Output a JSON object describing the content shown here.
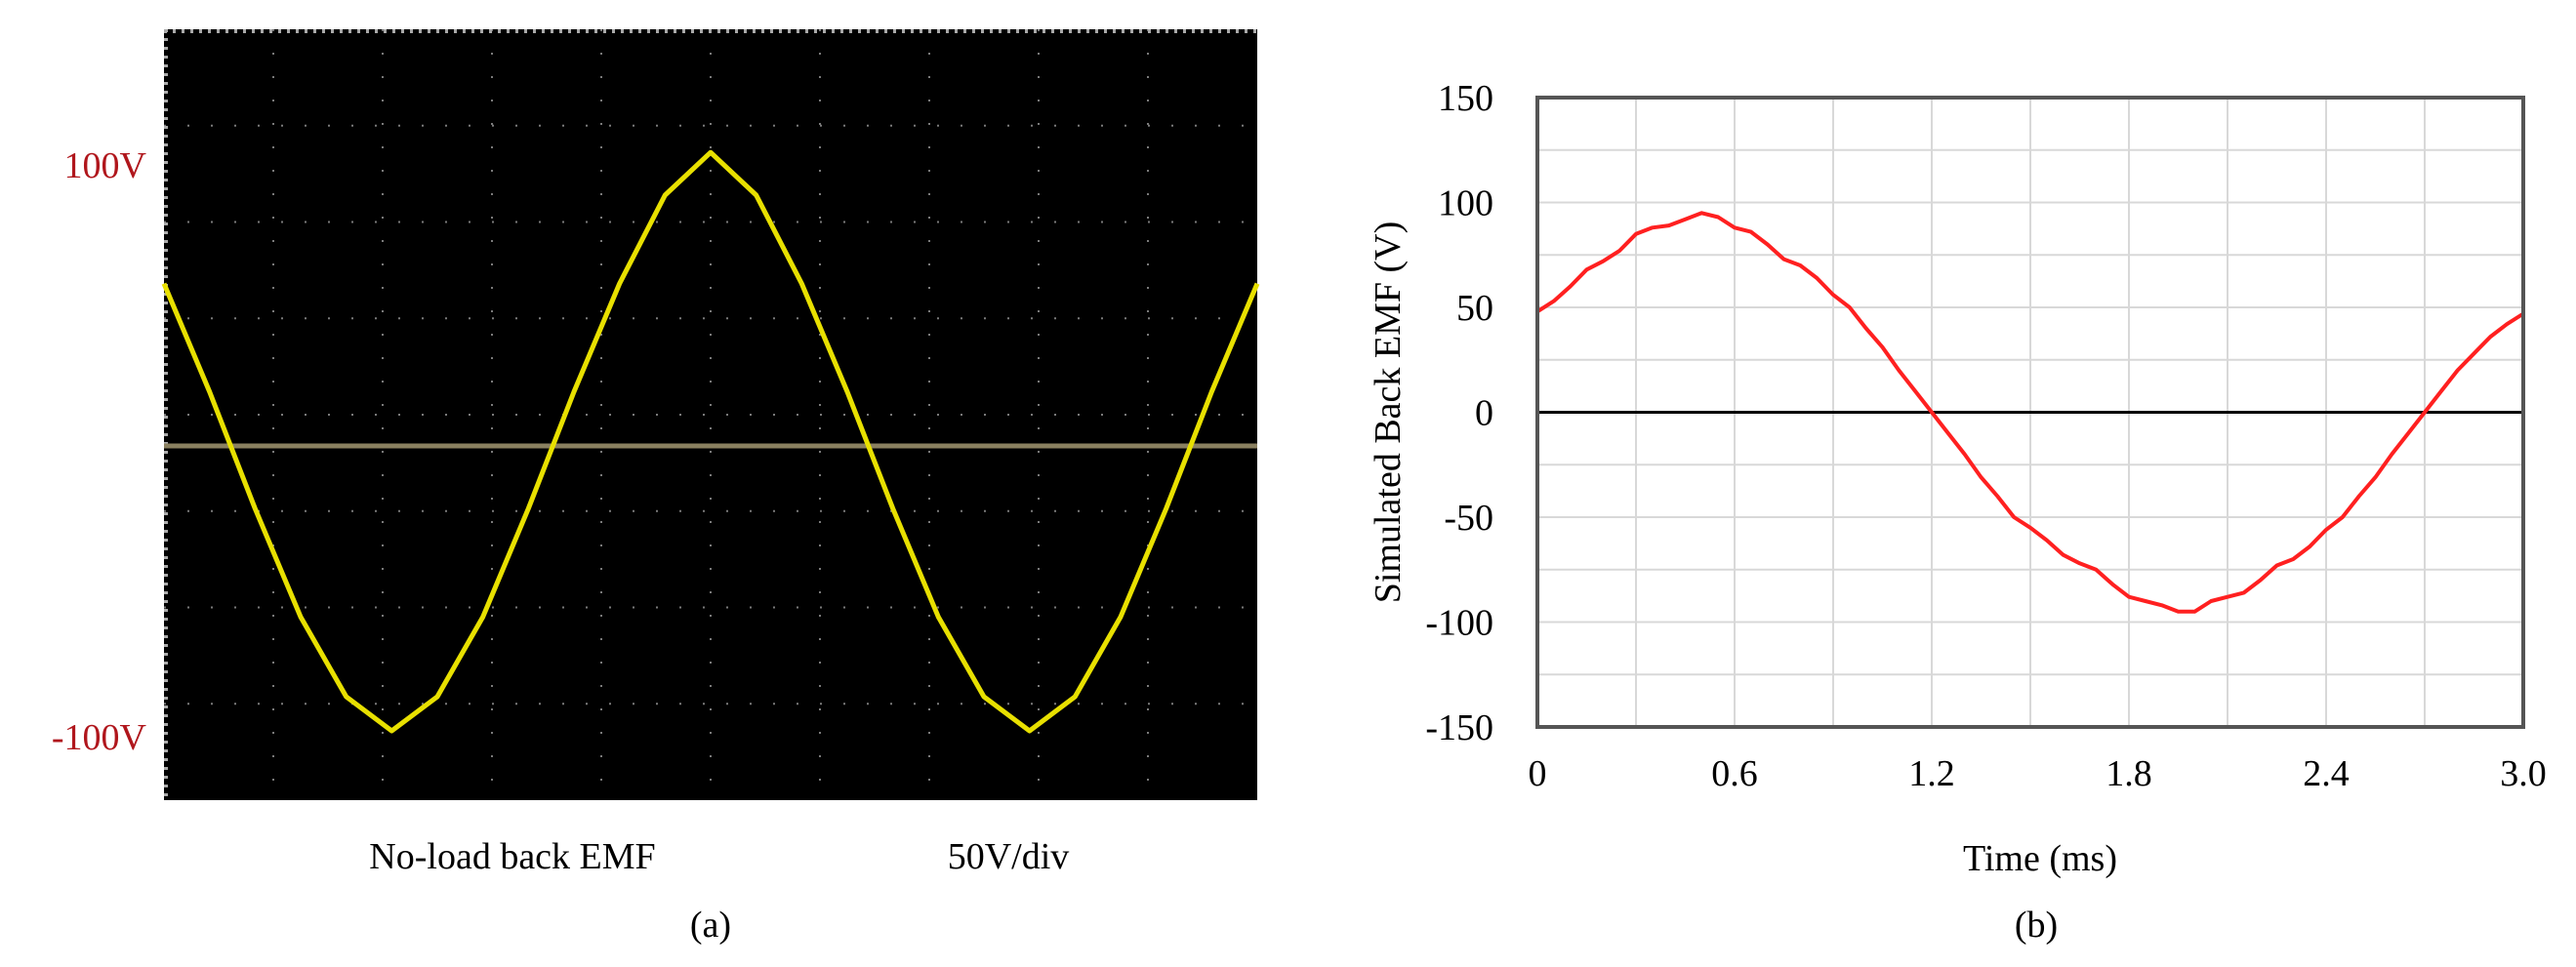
{
  "panel_a": {
    "label": "(a)",
    "caption_left": "No-load back EMF",
    "caption_right": "50V/div",
    "marker_top": "100V",
    "marker_bottom": "-100V",
    "colors": {
      "screen": "#000000",
      "trace": "#e8e000",
      "grid": "#7a7a7a",
      "baseline": "#8a8060",
      "marker_text": "#b0161c"
    }
  },
  "panel_b": {
    "label": "(b)",
    "colors": {
      "line": "#ff2020",
      "zero_line": "#000000",
      "grid": "#d8d8d8",
      "frame": "#555555"
    }
  },
  "chart_data": [
    {
      "type": "line",
      "title": "",
      "xlabel": "",
      "ylabel": "",
      "ylim": [
        -100,
        100
      ],
      "annotations": [
        "100V",
        "-100V",
        "No-load back EMF",
        "50V/div"
      ],
      "grid": true,
      "series": [
        {
          "x": [
            0,
            0.25,
            0.5,
            0.75,
            1.0,
            1.25,
            1.5,
            1.75,
            2.0,
            2.25,
            2.5,
            2.75,
            3.0,
            3.25,
            3.5,
            3.75,
            4.0,
            4.25,
            4.5,
            4.75,
            5.0,
            5.25,
            5.5,
            5.75,
            6.0
          ],
          "y": [
            57,
            19,
            -22,
            -60,
            -88,
            -100,
            -88,
            -60,
            -22,
            19,
            57,
            88,
            103,
            88,
            57,
            19,
            -22,
            -60,
            -88,
            -100,
            -88,
            -60,
            -22,
            19,
            57
          ]
        }
      ]
    },
    {
      "type": "line",
      "title": "",
      "xlabel": "Time (ms)",
      "ylabel": "Simulated Back EMF (V)",
      "xlim": [
        0,
        3.0
      ],
      "ylim": [
        -150,
        150
      ],
      "xticks": [
        "0",
        "0.6",
        "1.2",
        "1.8",
        "2.4",
        "3.0"
      ],
      "yticks": [
        "150",
        "100",
        "50",
        "0",
        "-50",
        "-100",
        "-150"
      ],
      "grid": true,
      "series": [
        {
          "x": [
            0,
            0.05,
            0.1,
            0.15,
            0.2,
            0.25,
            0.3,
            0.35,
            0.4,
            0.45,
            0.5,
            0.55,
            0.6,
            0.65,
            0.7,
            0.75,
            0.8,
            0.85,
            0.9,
            0.95,
            1.0,
            1.05,
            1.1,
            1.15,
            1.2,
            1.25,
            1.3,
            1.35,
            1.4,
            1.45,
            1.5,
            1.55,
            1.6,
            1.65,
            1.7,
            1.75,
            1.8,
            1.85,
            1.9,
            1.95,
            2.0,
            2.05,
            2.1,
            2.15,
            2.2,
            2.25,
            2.3,
            2.35,
            2.4,
            2.45,
            2.5,
            2.55,
            2.6,
            2.65,
            2.7,
            2.75,
            2.8,
            2.85,
            2.9,
            2.95,
            3.0
          ],
          "y": [
            48,
            53,
            60,
            68,
            72,
            77,
            85,
            88,
            89,
            92,
            95,
            93,
            88,
            86,
            80,
            73,
            70,
            64,
            56,
            50,
            40,
            31,
            20,
            10,
            0,
            -10,
            -20,
            -31,
            -40,
            -50,
            -55,
            -61,
            -68,
            -72,
            -75,
            -82,
            -88,
            -90,
            -92,
            -95,
            -95,
            -90,
            -88,
            -86,
            -80,
            -73,
            -70,
            -64,
            -56,
            -50,
            -40,
            -31,
            -20,
            -10,
            0,
            10,
            20,
            28,
            36,
            42,
            47
          ]
        }
      ]
    }
  ]
}
